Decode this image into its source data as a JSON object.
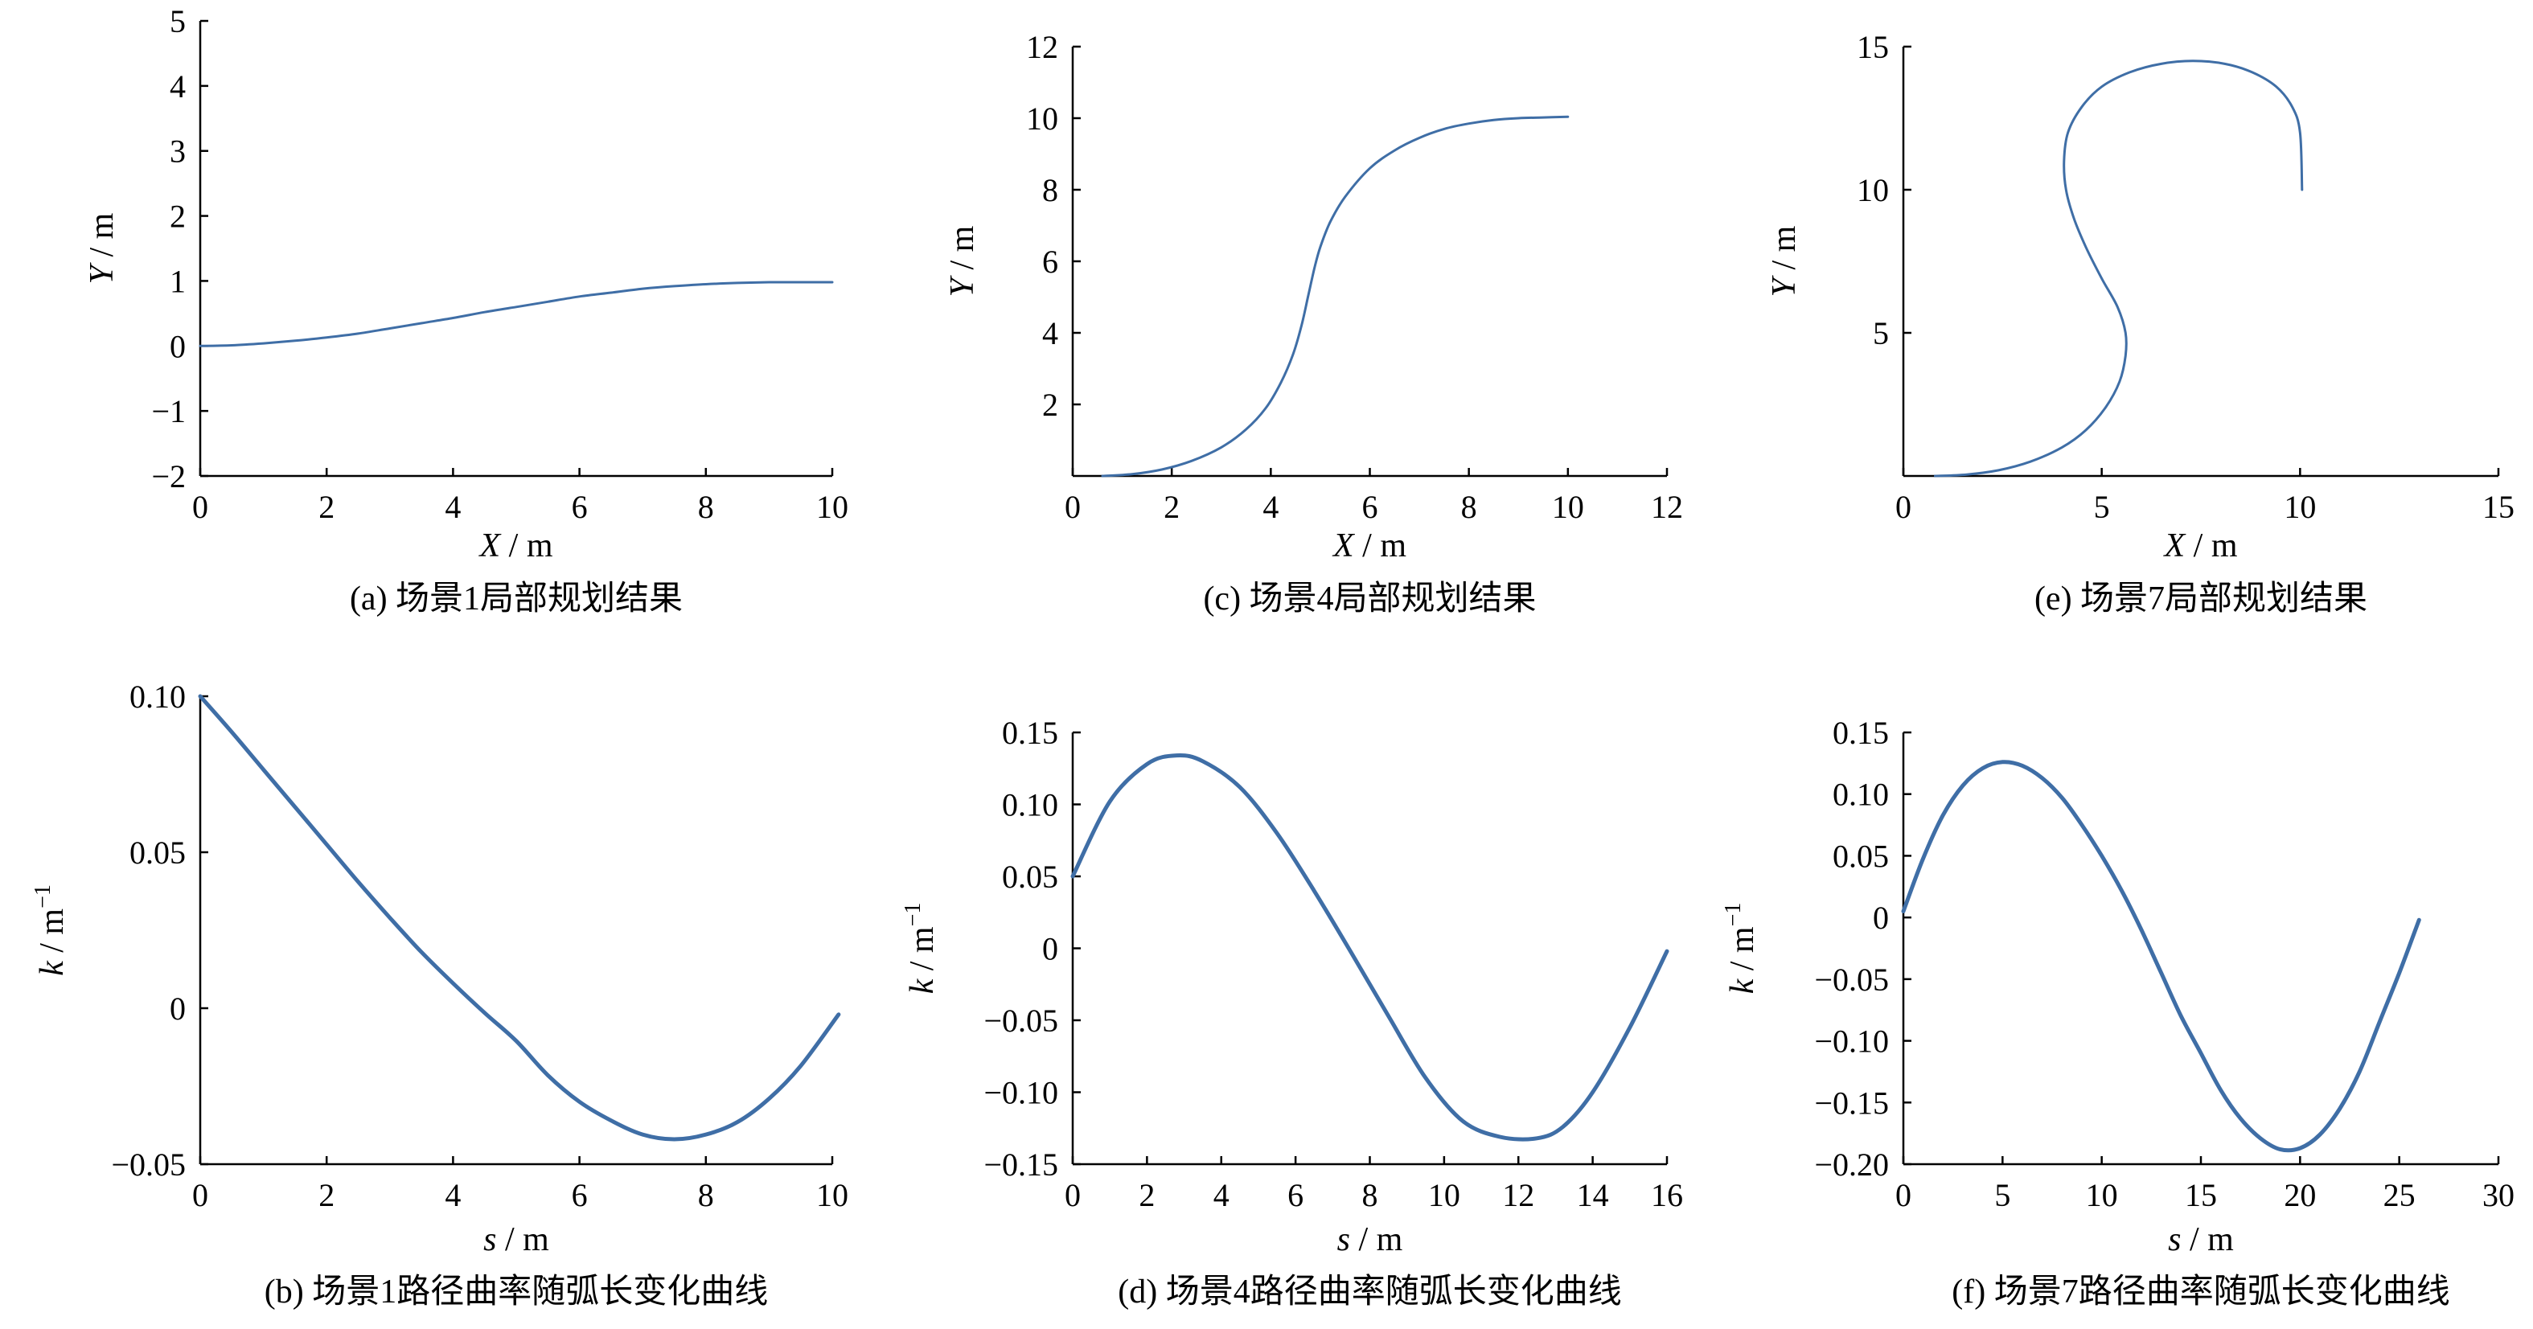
{
  "style": {
    "line_color": "#3f6ea6",
    "axis_color": "#000000",
    "background": "#ffffff"
  },
  "chart_data": [
    {
      "id": "a",
      "type": "line",
      "caption": "(a) 场景1局部规划结果",
      "xlabel": {
        "var": "X",
        "unit": " / m"
      },
      "ylabel": {
        "var": "Y",
        "unit": " / m"
      },
      "xlim": [
        0,
        10
      ],
      "ylim": [
        -2,
        5
      ],
      "xticks": [
        0,
        2,
        4,
        6,
        8,
        10
      ],
      "yticks": [
        -2,
        -1,
        0,
        1,
        2,
        3,
        4,
        5
      ],
      "xtick_labels": [
        "0",
        "2",
        "4",
        "6",
        "8",
        "10"
      ],
      "ytick_labels": [
        "−2",
        "−1",
        "0",
        "1",
        "2",
        "3",
        "4",
        "5"
      ],
      "series": [
        {
          "x": [
            0,
            0.5,
            1,
            1.5,
            2,
            2.5,
            3,
            3.5,
            4,
            4.5,
            5,
            5.5,
            6,
            6.5,
            7,
            7.5,
            8,
            8.5,
            9,
            9.5,
            10
          ],
          "y": [
            0,
            0.01,
            0.04,
            0.08,
            0.13,
            0.19,
            0.27,
            0.35,
            0.43,
            0.52,
            0.6,
            0.68,
            0.76,
            0.82,
            0.88,
            0.92,
            0.95,
            0.97,
            0.98,
            0.98,
            0.98
          ]
        }
      ]
    },
    {
      "id": "c",
      "type": "line",
      "caption": "(c) 场景4局部规划结果",
      "xlabel": {
        "var": "X",
        "unit": " / m"
      },
      "ylabel": {
        "var": "Y",
        "unit": " / m"
      },
      "xlim": [
        0,
        12
      ],
      "ylim": [
        0,
        12
      ],
      "xticks": [
        0,
        2,
        4,
        6,
        8,
        10,
        12
      ],
      "yticks": [
        2,
        4,
        6,
        8,
        10,
        12
      ],
      "xtick_labels": [
        "0",
        "2",
        "4",
        "6",
        "8",
        "10",
        "12"
      ],
      "ytick_labels": [
        "2",
        "4",
        "6",
        "8",
        "10",
        "12"
      ],
      "series": [
        {
          "x": [
            0.6,
            1.2,
            1.8,
            2.4,
            3.0,
            3.5,
            3.9,
            4.2,
            4.45,
            4.62,
            4.75,
            4.88,
            5.0,
            5.2,
            5.5,
            6.0,
            6.5,
            7.0,
            7.5,
            8.0,
            8.5,
            9.0,
            9.5,
            10.0
          ],
          "y": [
            0.0,
            0.05,
            0.18,
            0.42,
            0.8,
            1.3,
            1.9,
            2.6,
            3.4,
            4.2,
            5.0,
            5.8,
            6.4,
            7.1,
            7.8,
            8.6,
            9.1,
            9.45,
            9.7,
            9.85,
            9.95,
            10.0,
            10.02,
            10.04
          ]
        }
      ]
    },
    {
      "id": "e",
      "type": "line",
      "caption": "(e) 场景7局部规划结果",
      "xlabel": {
        "var": "X",
        "unit": " / m"
      },
      "ylabel": {
        "var": "Y",
        "unit": " / m"
      },
      "xlim": [
        0,
        15
      ],
      "ylim": [
        0,
        15
      ],
      "xticks": [
        0,
        5,
        10,
        15
      ],
      "yticks": [
        5,
        10,
        15
      ],
      "xtick_labels": [
        "0",
        "5",
        "10",
        "15"
      ],
      "ytick_labels": [
        "5",
        "10",
        "15"
      ],
      "series": [
        {
          "x": [
            0.8,
            1.6,
            2.4,
            3.2,
            4.0,
            4.6,
            5.1,
            5.45,
            5.6,
            5.6,
            5.4,
            5.0,
            4.6,
            4.3,
            4.1,
            4.05,
            4.15,
            4.5,
            5.0,
            5.7,
            6.5,
            7.3,
            8.1,
            8.8,
            9.4,
            9.8,
            10.0,
            10.05
          ],
          "y": [
            0.0,
            0.05,
            0.2,
            0.5,
            1.0,
            1.6,
            2.4,
            3.3,
            4.2,
            5.0,
            5.9,
            6.9,
            8.0,
            9.0,
            10.0,
            11.0,
            12.0,
            12.9,
            13.6,
            14.1,
            14.4,
            14.5,
            14.4,
            14.1,
            13.6,
            12.9,
            12.0,
            10.0
          ]
        }
      ]
    },
    {
      "id": "b",
      "type": "line",
      "caption": "(b) 场景1路径曲率随弧长变化曲线",
      "xlabel": {
        "var": "s",
        "unit": " / m"
      },
      "ylabel": {
        "var": "k",
        "unit": " / m",
        "sup": "−1"
      },
      "xlim": [
        0,
        10
      ],
      "ylim": [
        -0.05,
        0.1
      ],
      "xticks": [
        0,
        2,
        4,
        6,
        8,
        10
      ],
      "yticks": [
        -0.05,
        0,
        0.05,
        0.1
      ],
      "xtick_labels": [
        "0",
        "2",
        "4",
        "6",
        "8",
        "10"
      ],
      "ytick_labels": [
        "−0.05",
        "0",
        "0.05",
        "0.10"
      ],
      "series": [
        {
          "x": [
            0,
            0.5,
            1,
            1.5,
            2,
            2.5,
            3,
            3.5,
            4,
            4.5,
            5,
            5.5,
            6,
            6.5,
            7,
            7.5,
            8,
            8.5,
            9,
            9.5,
            10.1
          ],
          "y": [
            0.1,
            0.0885,
            0.0765,
            0.0645,
            0.0525,
            0.0405,
            0.029,
            0.018,
            0.008,
            -0.0015,
            -0.0105,
            -0.0215,
            -0.03,
            -0.036,
            -0.0405,
            -0.042,
            -0.0405,
            -0.0365,
            -0.029,
            -0.0185,
            -0.002
          ]
        }
      ]
    },
    {
      "id": "d",
      "type": "line",
      "caption": "(d) 场景4路径曲率随弧长变化曲线",
      "xlabel": {
        "var": "s",
        "unit": " / m"
      },
      "ylabel": {
        "var": "k",
        "unit": " / m",
        "sup": "−1"
      },
      "xlim": [
        0,
        16
      ],
      "ylim": [
        -0.15,
        0.15
      ],
      "xticks": [
        0,
        2,
        4,
        6,
        8,
        10,
        12,
        14,
        16
      ],
      "yticks": [
        -0.15,
        -0.1,
        -0.05,
        0,
        0.05,
        0.1,
        0.15
      ],
      "xtick_labels": [
        "0",
        "2",
        "4",
        "6",
        "8",
        "10",
        "12",
        "14",
        "16"
      ],
      "ytick_labels": [
        "−0.15",
        "−0.10",
        "−0.05",
        "0",
        "0.05",
        "0.10",
        "0.15"
      ],
      "series": [
        {
          "x": [
            0,
            1,
            2,
            2.8,
            3.5,
            4.5,
            5.5,
            6.5,
            7.5,
            8.5,
            9.5,
            10.5,
            11.5,
            12.5,
            13.2,
            14,
            15,
            16
          ],
          "y": [
            0.05,
            0.102,
            0.128,
            0.134,
            0.13,
            0.112,
            0.08,
            0.04,
            -0.003,
            -0.047,
            -0.09,
            -0.12,
            -0.131,
            -0.132,
            -0.124,
            -0.1,
            -0.055,
            -0.002
          ]
        }
      ]
    },
    {
      "id": "f",
      "type": "line",
      "caption": "(f) 场景7路径曲率随弧长变化曲线",
      "xlabel": {
        "var": "s",
        "unit": " / m"
      },
      "ylabel": {
        "var": "k",
        "unit": " / m",
        "sup": "−1"
      },
      "xlim": [
        0,
        30
      ],
      "ylim": [
        -0.2,
        0.15
      ],
      "xticks": [
        0,
        5,
        10,
        15,
        20,
        25,
        30
      ],
      "yticks": [
        -0.2,
        -0.15,
        -0.1,
        -0.05,
        0,
        0.05,
        0.1,
        0.15
      ],
      "xtick_labels": [
        "0",
        "5",
        "10",
        "15",
        "20",
        "25",
        "30"
      ],
      "ytick_labels": [
        "−0.20",
        "−0.15",
        "−0.10",
        "−0.05",
        "0",
        "0.05",
        "0.10",
        "0.15"
      ],
      "series": [
        {
          "x": [
            0,
            1,
            2,
            3,
            4,
            5,
            6,
            7,
            8,
            9,
            10,
            11,
            12,
            13,
            14,
            15,
            16,
            17,
            18,
            19,
            20,
            21,
            22,
            23,
            24,
            25,
            26
          ],
          "y": [
            0.005,
            0.048,
            0.083,
            0.107,
            0.121,
            0.126,
            0.123,
            0.113,
            0.097,
            0.075,
            0.05,
            0.022,
            -0.01,
            -0.045,
            -0.08,
            -0.11,
            -0.14,
            -0.163,
            -0.179,
            -0.188,
            -0.187,
            -0.176,
            -0.155,
            -0.125,
            -0.085,
            -0.045,
            -0.002
          ]
        }
      ]
    }
  ]
}
